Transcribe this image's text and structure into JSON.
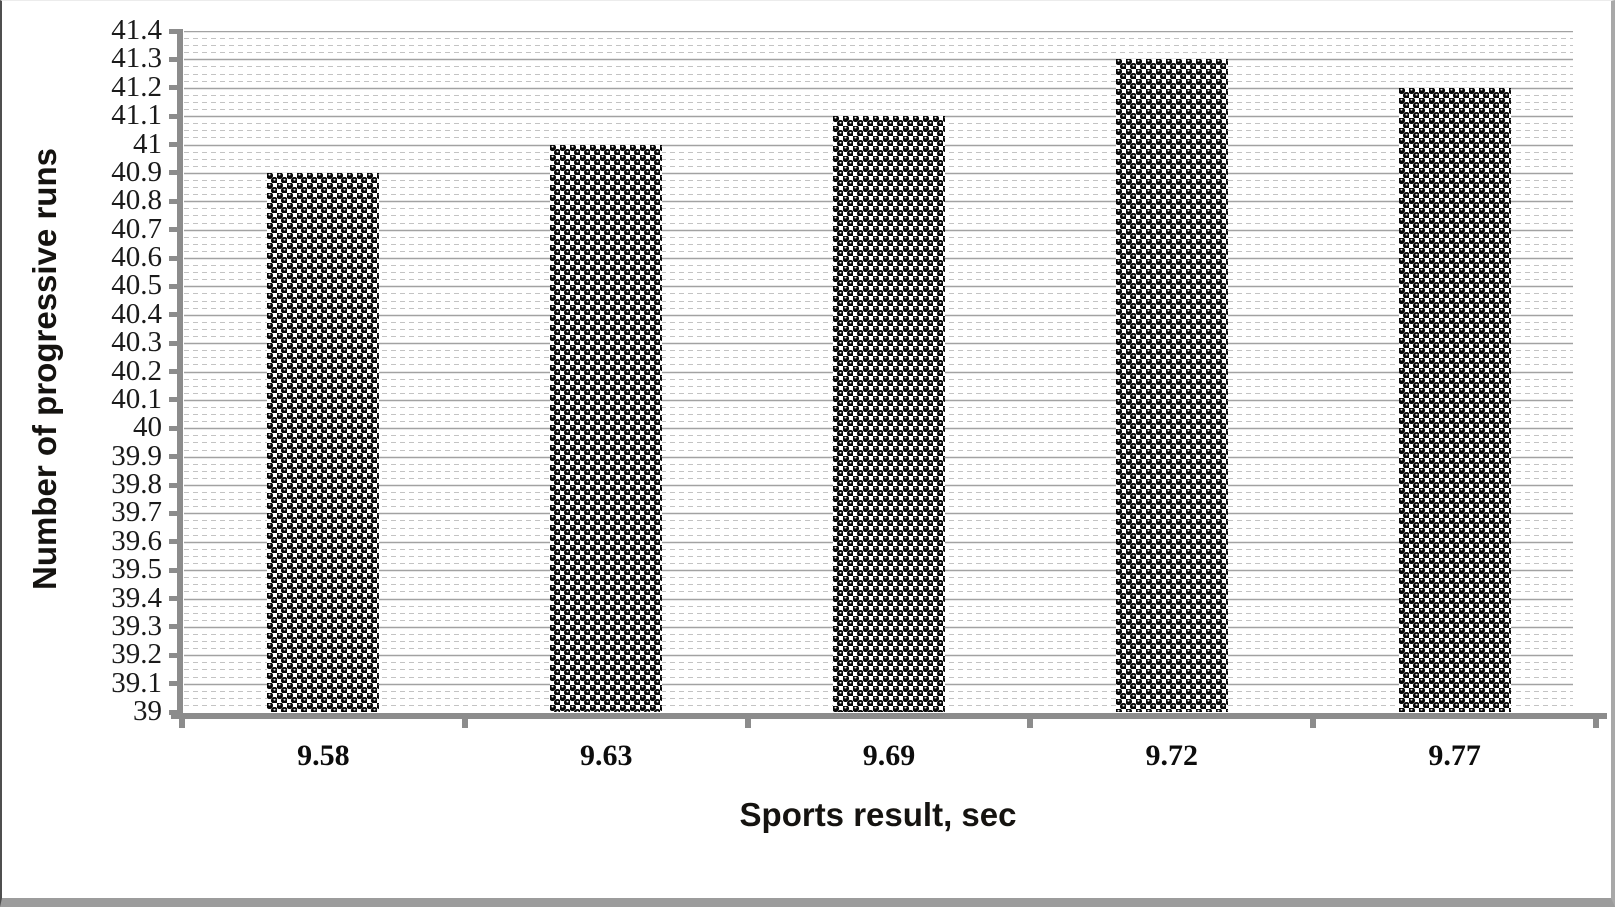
{
  "chart_data": {
    "type": "bar",
    "title": "",
    "xlabel": "Sports result, sec",
    "ylabel": "Number of progressive runs",
    "categories": [
      "9.58",
      "9.63",
      "9.69",
      "9.72",
      "9.77"
    ],
    "values": [
      40.9,
      41,
      41.1,
      41.3,
      41.2
    ],
    "ylim": [
      39,
      41.4
    ],
    "ytick_step": 0.1,
    "minor_gridlines_per_major": 3,
    "yticks": [
      "41.4",
      "41.3",
      "41.2",
      "41.1",
      "41",
      "40.9",
      "40.8",
      "40.7",
      "40.6",
      "40.5",
      "40.4",
      "40.3",
      "40.2",
      "40.1",
      "40",
      "39.9",
      "39.8",
      "39.7",
      "39.6",
      "39.5",
      "39.4",
      "39.3",
      "39.2",
      "39.1",
      "39"
    ],
    "grid": "major-solid, minor-dashed, horizontal only",
    "legend": "none",
    "bar_pattern": "black ball checkerboard fill on white",
    "colors": {
      "bar_fill": "#000000",
      "bar_background": "#ffffff",
      "axis": "#8c8c8c",
      "major_grid": "#a2a2a2",
      "minor_grid": "#c3c3c3",
      "tick_text": "#1a1a1a",
      "title_text": "#151310",
      "background": "#ffffff"
    }
  }
}
